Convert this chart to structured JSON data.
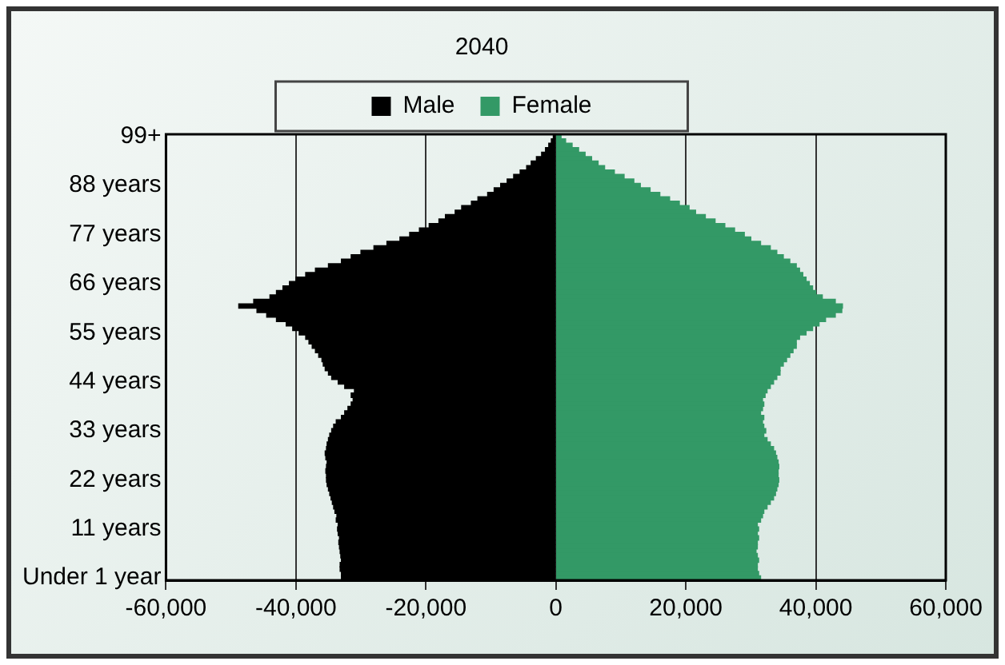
{
  "chart_data": {
    "type": "bar",
    "orientation": "horizontal",
    "stacked": true,
    "title": "2040",
    "categories": [
      "99+",
      null,
      null,
      null,
      null,
      null,
      null,
      null,
      null,
      null,
      null,
      "88 years",
      null,
      null,
      null,
      null,
      null,
      null,
      null,
      null,
      null,
      null,
      "77 years",
      null,
      null,
      null,
      null,
      null,
      null,
      null,
      null,
      null,
      null,
      "66 years",
      null,
      null,
      null,
      null,
      null,
      null,
      null,
      null,
      null,
      null,
      "55 years",
      null,
      null,
      null,
      null,
      null,
      null,
      null,
      null,
      null,
      null,
      "44 years",
      null,
      null,
      null,
      null,
      null,
      null,
      null,
      null,
      null,
      null,
      "33 years",
      null,
      null,
      null,
      null,
      null,
      null,
      null,
      null,
      null,
      null,
      "22 years",
      null,
      null,
      null,
      null,
      null,
      null,
      null,
      null,
      null,
      null,
      "11 years",
      null,
      null,
      null,
      null,
      null,
      null,
      null,
      null,
      null,
      null,
      "Under 1 year"
    ],
    "series": [
      {
        "name": "Male",
        "color": "#000000",
        "values": [
          -400,
          -700,
          -1100,
          -1600,
          -2200,
          -3000,
          -3800,
          -4500,
          -5500,
          -6500,
          -7500,
          -8500,
          -9500,
          -10500,
          -12000,
          -13000,
          -14500,
          -15500,
          -17000,
          -18000,
          -19500,
          -21000,
          -22500,
          -24000,
          -26000,
          -28000,
          -30000,
          -31500,
          -33000,
          -35000,
          -37000,
          -38500,
          -40000,
          -41000,
          -42000,
          -43000,
          -44000,
          -46500,
          -48800,
          -46000,
          -44500,
          -43000,
          -41500,
          -40500,
          -39500,
          -38500,
          -38000,
          -37500,
          -37000,
          -36500,
          -36000,
          -35800,
          -35500,
          -35000,
          -34500,
          -33500,
          -32500,
          -31000,
          -31500,
          -31200,
          -31500,
          -32000,
          -32500,
          -33000,
          -33800,
          -34200,
          -34500,
          -34800,
          -35000,
          -35200,
          -35300,
          -35500,
          -35400,
          -35200,
          -35300,
          -35400,
          -35300,
          -35300,
          -35200,
          -35000,
          -34800,
          -34600,
          -34400,
          -34200,
          -34000,
          -33700,
          -33800,
          -33500,
          -33600,
          -33500,
          -33300,
          -33400,
          -33300,
          -33200,
          -33100,
          -33000,
          -33200,
          -33200,
          -33000,
          -33000
        ]
      },
      {
        "name": "Female",
        "color": "#339966",
        "values": [
          800,
          1500,
          2500,
          3500,
          4500,
          5500,
          6500,
          7500,
          9000,
          10500,
          12000,
          13000,
          14500,
          16000,
          17500,
          19000,
          20500,
          21500,
          23000,
          24500,
          26000,
          27500,
          29000,
          30000,
          31500,
          33000,
          34000,
          35000,
          36000,
          37000,
          37500,
          38000,
          38500,
          39000,
          39500,
          40000,
          41000,
          43000,
          44100,
          44000,
          43000,
          41500,
          40500,
          39500,
          38500,
          37500,
          37000,
          37000,
          36500,
          36000,
          35500,
          35000,
          34500,
          34500,
          34000,
          33500,
          33000,
          32500,
          32200,
          31800,
          32000,
          31800,
          31500,
          32000,
          31800,
          32000,
          32300,
          32000,
          32500,
          33000,
          33500,
          33800,
          34000,
          34200,
          34300,
          34200,
          34200,
          34300,
          34200,
          34000,
          33800,
          33500,
          33000,
          32500,
          32000,
          31800,
          31500,
          31000,
          31200,
          31000,
          31200,
          31000,
          31000,
          30800,
          31000,
          31200,
          31000,
          31000,
          31200,
          31500
        ]
      }
    ],
    "xlim": [
      -60000,
      60000
    ],
    "xticks": [
      {
        "value": -60000,
        "label": "-60,000"
      },
      {
        "value": -40000,
        "label": "-40,000"
      },
      {
        "value": -20000,
        "label": "-20,000"
      },
      0,
      {
        "value": 20000,
        "label": "20,000"
      },
      {
        "value": 40000,
        "label": "40,000"
      },
      {
        "value": 60000,
        "label": "60,000"
      }
    ],
    "grid": "x",
    "legend": "top"
  }
}
